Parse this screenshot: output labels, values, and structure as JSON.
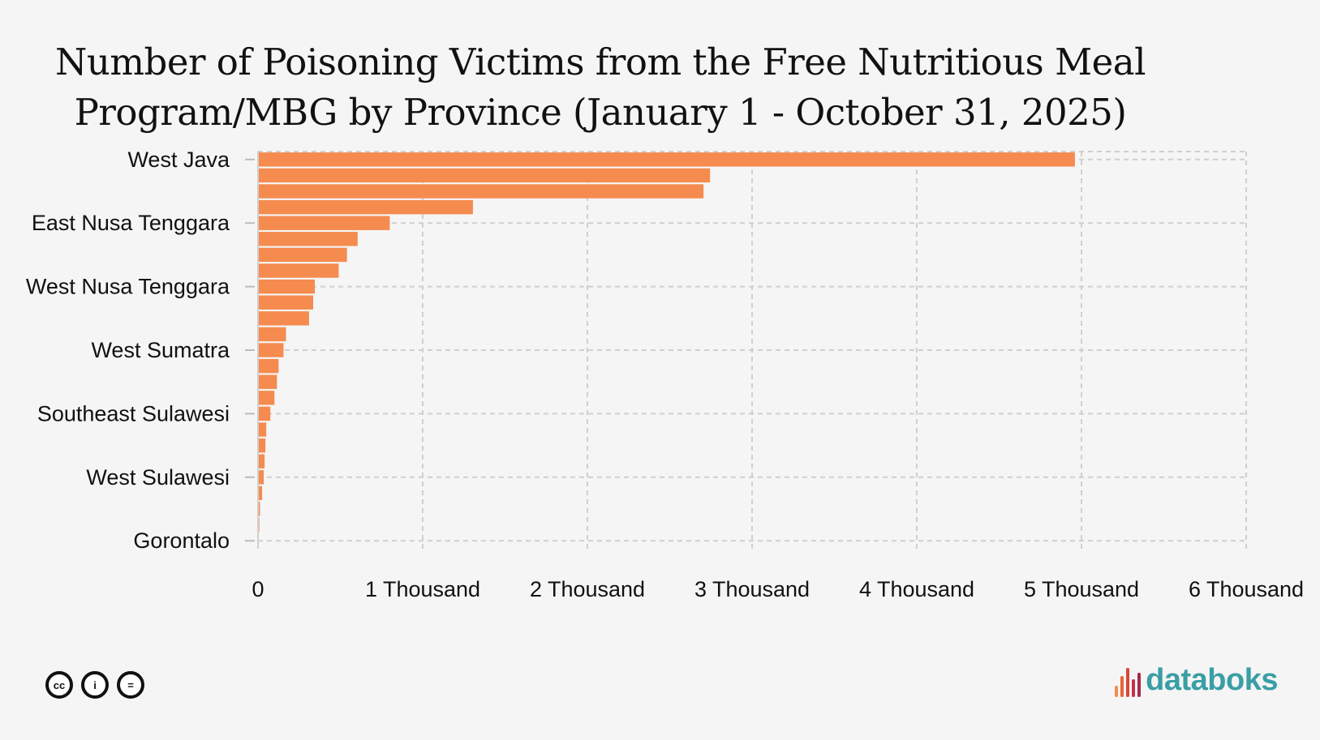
{
  "chart_data": {
    "type": "bar",
    "orientation": "horizontal",
    "title": "Number of Poisoning Victims from the Free Nutritious Meal Program/MBG by Province (January 1 - October 31, 2025)",
    "title_lines": [
      "Number of Poisoning Victims from the Free Nutritious Meal",
      "Program/MBG by Province (January 1 - October 31, 2025)"
    ],
    "categories": [
      "West Java",
      "",
      "",
      "",
      "East Nusa Tenggara",
      "",
      "",
      "",
      "West Nusa Tenggara",
      "",
      "",
      "",
      "West Sumatra",
      "",
      "",
      "",
      "Southeast Sulawesi",
      "",
      "",
      "",
      "West Sulawesi",
      "",
      "",
      "",
      "Gorontalo"
    ],
    "values": [
      4960,
      2745,
      2705,
      1305,
      800,
      605,
      540,
      490,
      345,
      335,
      310,
      170,
      155,
      125,
      115,
      100,
      75,
      50,
      45,
      40,
      35,
      25,
      12,
      8,
      5
    ],
    "xlim": [
      0,
      6000
    ],
    "x_ticks": [
      0,
      1000,
      2000,
      3000,
      4000,
      5000,
      6000
    ],
    "x_tick_labels": [
      "0",
      "1 Thousand",
      "2 Thousand",
      "3 Thousand",
      "4 Thousand",
      "5 Thousand",
      "6 Thousand"
    ],
    "bar_color": "#f58b4e",
    "grid": true,
    "legend": "none"
  },
  "footer": {
    "cc_icons": [
      "cc-icon",
      "by-icon",
      "nd-icon"
    ],
    "cc_labels": [
      "cc",
      "i",
      "="
    ],
    "logo_text": "databoks",
    "logo_color": "#3a9ea5"
  }
}
